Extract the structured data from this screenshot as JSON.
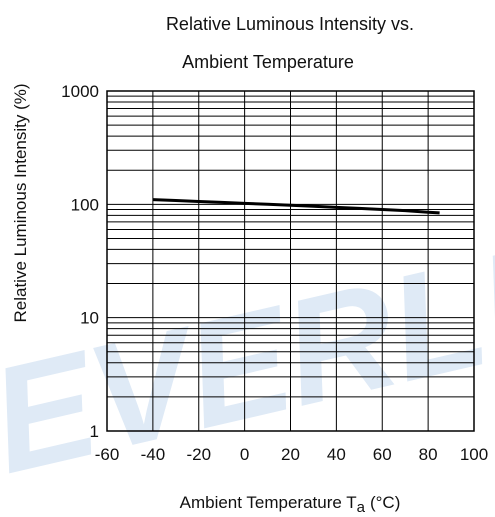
{
  "chart_data": {
    "type": "line",
    "title": [
      "Relative Luminous Intensity vs.",
      "Ambient Temperature"
    ],
    "xlabel": "Ambient Temperature T",
    "xlabel_sub": "a",
    "xlabel_unit": "(°C)",
    "ylabel": "Relative Luminous Intensity  (%)",
    "xlim": [
      -60,
      100
    ],
    "ylim": [
      1,
      1000
    ],
    "yscale": "log",
    "grid": true,
    "x_ticks": [
      "-60",
      "-40",
      "-20",
      "0",
      "20",
      "40",
      "60",
      "80",
      "100"
    ],
    "y_ticks": [
      "1",
      "10",
      "100",
      "1000"
    ],
    "series": [
      {
        "x": [
          -40,
          -30,
          -20,
          -10,
          0,
          10,
          20,
          30,
          40,
          50,
          60,
          70,
          80,
          85
        ],
        "values": [
          110,
          108,
          106,
          104,
          102,
          100,
          98,
          96,
          94,
          92,
          90,
          88,
          85,
          84
        ]
      }
    ]
  },
  "watermark": "EVERLIGHT",
  "colors": {
    "line": "#000000",
    "grid": "#000000",
    "watermark": "#dfeaf6"
  }
}
